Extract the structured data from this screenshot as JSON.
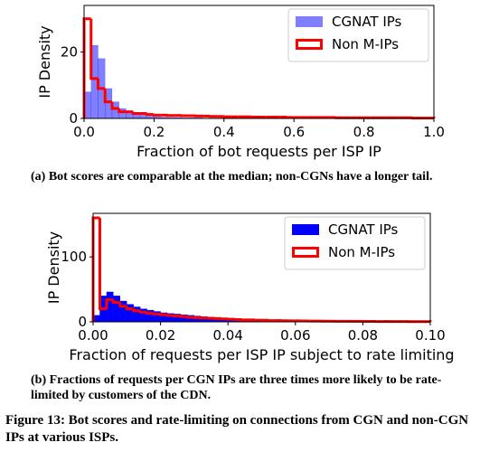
{
  "chart_data": [
    {
      "type": "histogram",
      "xlabel": "Fraction of bot requests per ISP IP",
      "ylabel": "IP Density",
      "bins": [
        0,
        0.02,
        0.04,
        0.06,
        0.08,
        0.1,
        0.12,
        0.14,
        0.16,
        0.18,
        0.2,
        0.22,
        0.24,
        0.26,
        0.28,
        0.3,
        0.32,
        0.34,
        0.36,
        0.38,
        0.4,
        0.42,
        0.44,
        0.46,
        0.48,
        0.5,
        0.52,
        0.54,
        0.56,
        0.58,
        0.6,
        0.62,
        0.64,
        0.66,
        0.68,
        0.7,
        0.72,
        0.74,
        0.76,
        0.78,
        0.8,
        0.82,
        0.84,
        0.86,
        0.88,
        0.9,
        0.92,
        0.94,
        0.96,
        0.98,
        1
      ],
      "series": [
        {
          "name": "CGNAT IPs",
          "color": "#0000ff",
          "opacity": 0.5,
          "style": "filled",
          "values": [
            8,
            22,
            18,
            9,
            5,
            3,
            2,
            1.5,
            1,
            0.7,
            0.5,
            0.4,
            0.3,
            0.3,
            0.2,
            0.2,
            0.2,
            0.1,
            0.1,
            0.1,
            0.1,
            0.1,
            0.1,
            0.1,
            0.1,
            0.1,
            0.1,
            0.1,
            0.1,
            0.1,
            0,
            0,
            0,
            0,
            0,
            0,
            0,
            0,
            0,
            0,
            0,
            0,
            0,
            0,
            0,
            0,
            0,
            0,
            0,
            0
          ]
        },
        {
          "name": "Non M-IPs",
          "color": "#ff0000",
          "opacity": 1,
          "style": "step",
          "values": [
            30,
            12,
            9,
            5,
            3,
            2,
            2,
            1.5,
            1.5,
            1.2,
            1,
            1,
            0.9,
            0.9,
            0.8,
            0.8,
            0.7,
            0.7,
            0.6,
            0.6,
            0.5,
            0.5,
            0.5,
            0.5,
            0.4,
            0.4,
            0.4,
            0.4,
            0.4,
            0.3,
            0.3,
            0.3,
            0.3,
            0.3,
            0.3,
            0.3,
            0.2,
            0.2,
            0.2,
            0.2,
            0.2,
            0.2,
            0.2,
            0.2,
            0.2,
            0.2,
            0.2,
            0.1,
            0.1,
            0.1
          ]
        }
      ],
      "xlim": [
        0,
        1
      ],
      "xticks": [
        {
          "value": 0,
          "label": "0.0"
        },
        0.2,
        0.4,
        0.6,
        0.8,
        {
          "value": 1,
          "label": "1.0"
        }
      ],
      "ylim": [
        0,
        34
      ],
      "yticks": [
        0,
        20
      ],
      "legend": "upper right"
    },
    {
      "type": "histogram",
      "xlabel": "Fraction of requests per ISP IP subject to rate limiting",
      "ylabel": "IP Density",
      "bins": [
        0,
        0.002,
        0.004,
        0.006,
        0.008,
        0.01,
        0.012,
        0.014,
        0.016,
        0.018,
        0.02,
        0.022,
        0.024,
        0.026,
        0.028,
        0.03,
        0.032,
        0.034,
        0.036,
        0.038,
        0.04,
        0.042,
        0.044,
        0.046,
        0.048,
        0.05,
        0.052,
        0.054,
        0.056,
        0.058,
        0.06,
        0.062,
        0.064,
        0.066,
        0.068,
        0.07,
        0.072,
        0.074,
        0.076,
        0.078,
        0.08,
        0.082,
        0.084,
        0.086,
        0.088,
        0.09,
        0.092,
        0.094,
        0.096,
        0.098,
        0.1
      ],
      "series": [
        {
          "name": "CGNAT IPs",
          "color": "#0000ff",
          "opacity": 1,
          "style": "filled",
          "values": [
            10,
            40,
            46,
            40,
            32,
            27,
            23,
            20,
            18,
            16,
            14,
            13,
            12,
            11,
            10,
            9,
            8,
            7,
            6.5,
            6,
            5.5,
            5,
            4.5,
            4,
            3.5,
            3,
            3,
            2.5,
            2.5,
            2,
            2,
            1.5,
            1.5,
            1.5,
            1,
            1,
            1,
            1,
            1,
            0.8,
            0.8,
            0.8,
            0.6,
            0.6,
            0.6,
            0.5,
            0.5,
            0.5,
            0.4,
            0.4
          ]
        },
        {
          "name": "Non M-IPs",
          "color": "#ff0000",
          "opacity": 1,
          "style": "step",
          "values": [
            160,
            20,
            34,
            30,
            24,
            20,
            17,
            15,
            13,
            12,
            11,
            10,
            9,
            8,
            7,
            6.5,
            6,
            5.5,
            5,
            4.5,
            4,
            3.5,
            3,
            3,
            2.5,
            2.5,
            2,
            2,
            1.8,
            1.6,
            1.5,
            1.4,
            1.3,
            1.2,
            1,
            1,
            0.9,
            0.9,
            0.8,
            0.8,
            0.7,
            0.7,
            0.6,
            0.6,
            0.5,
            0.5,
            0.5,
            0.4,
            0.4,
            0.4
          ]
        }
      ],
      "xlim": [
        0,
        0.1
      ],
      "xticks": [
        {
          "value": 0,
          "label": "0.00"
        },
        0.02,
        0.04,
        0.06,
        0.08,
        {
          "value": 0.1,
          "label": "0.10"
        }
      ],
      "ylim": [
        0,
        167
      ],
      "yticks": [
        0,
        100
      ],
      "legend": "upper right"
    }
  ],
  "captions": {
    "a": "(a)  Bot scores are comparable at the median; non-CGNs have a longer tail.",
    "b": "(b)  Fractions of requests per CGN IPs are three times more likely to be rate-limited by customers of the CDN.",
    "figure": "Figure 13: Bot scores and rate-limiting on connections from CGN and non-CGN IPs at various ISPs."
  }
}
